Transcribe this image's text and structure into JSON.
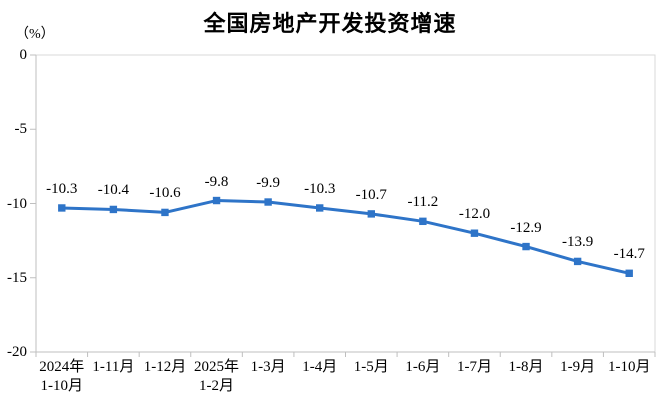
{
  "chart_data": {
    "type": "line",
    "title": "全国房地产开发投资增速",
    "ylabel": "（%）",
    "xlabel": "",
    "categories": [
      "2024年\n1-10月",
      "1-11月",
      "1-12月",
      "2025年\n1-2月",
      "1-3月",
      "1-4月",
      "1-5月",
      "1-6月",
      "1-7月",
      "1-8月",
      "1-9月",
      "1-10月"
    ],
    "values": [
      -10.3,
      -10.4,
      -10.6,
      -9.8,
      -9.9,
      -10.3,
      -10.7,
      -11.2,
      -12.0,
      -12.9,
      -13.9,
      -14.7
    ],
    "data_labels": [
      "-10.3",
      "-10.4",
      "-10.6",
      "-9.8",
      "-9.9",
      "-10.3",
      "-10.7",
      "-11.2",
      "-12.0",
      "-12.9",
      "-13.9",
      "-14.7"
    ],
    "ylim": [
      -20,
      0
    ],
    "yticks": [
      0,
      -5,
      -10,
      -15,
      -20
    ],
    "ytick_labels": [
      "0",
      "-5",
      "-10",
      "-15",
      "-20"
    ],
    "grid": false,
    "legend_position": "none",
    "marker": "square",
    "line_color": "#2E74C8",
    "marker_color": "#2E74C8",
    "axis_color": "#BFBFBF",
    "border_color": "#D9D9D9",
    "text_color": "#000000"
  }
}
